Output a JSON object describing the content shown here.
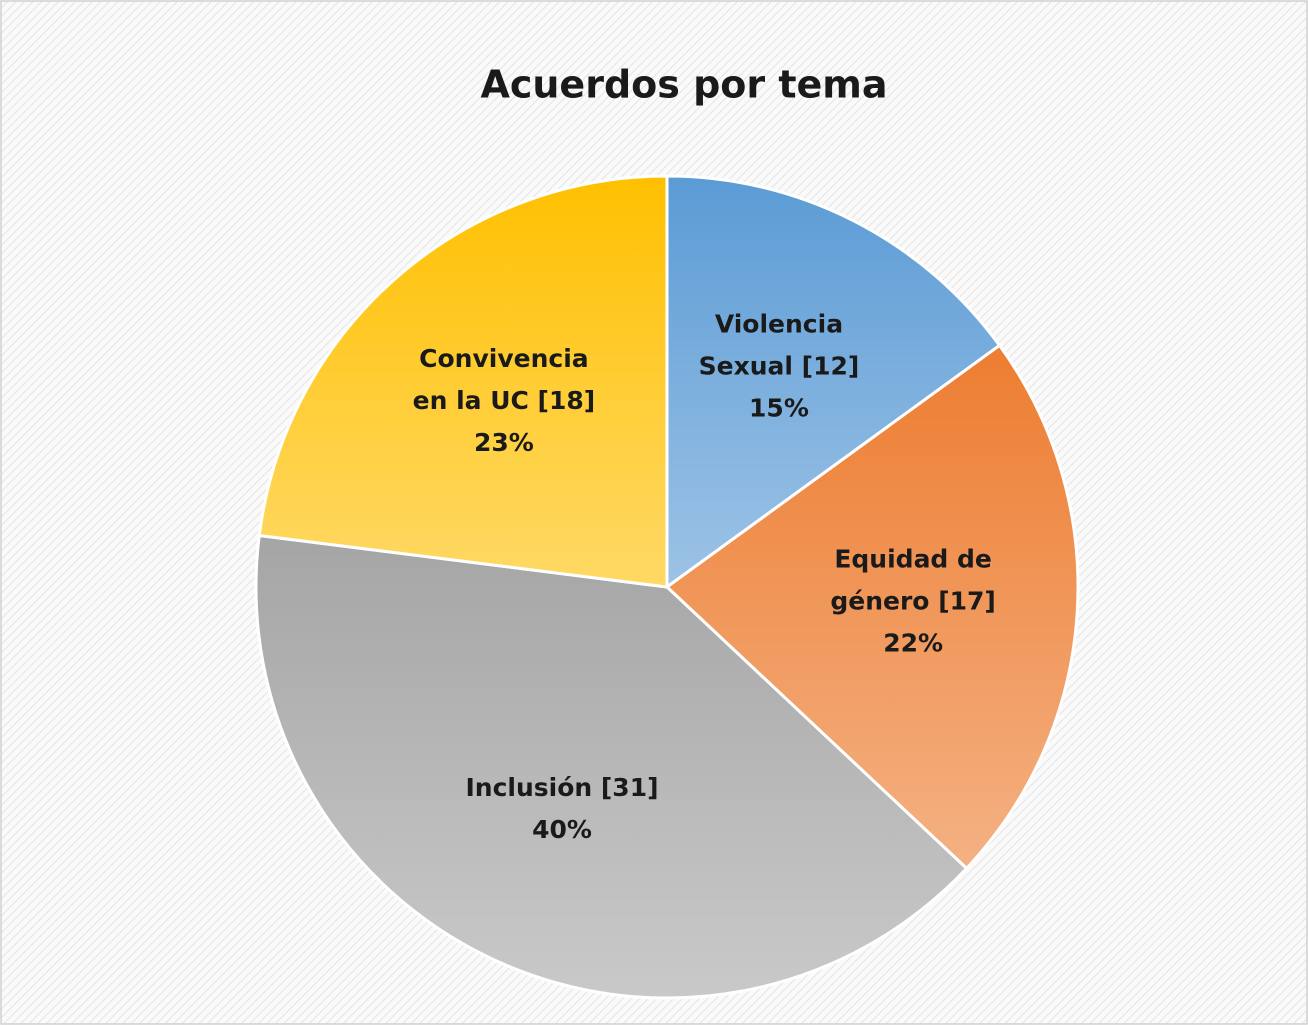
{
  "chart_data": {
    "type": "pie",
    "title": "Acuerdos por tema",
    "categories": [
      "Violencia\nSexual [12]",
      "Equidad de\ngénero [17]",
      "Inclusión [31]",
      "Convivencia\nen la UC [18]"
    ],
    "values": [
      15,
      22,
      40,
      23
    ],
    "value_labels": [
      "15%",
      "22%",
      "40%",
      "23%"
    ],
    "colors": [
      "#5b9bd5",
      "#ed7d31",
      "#a5a5a5",
      "#ffc000"
    ]
  }
}
